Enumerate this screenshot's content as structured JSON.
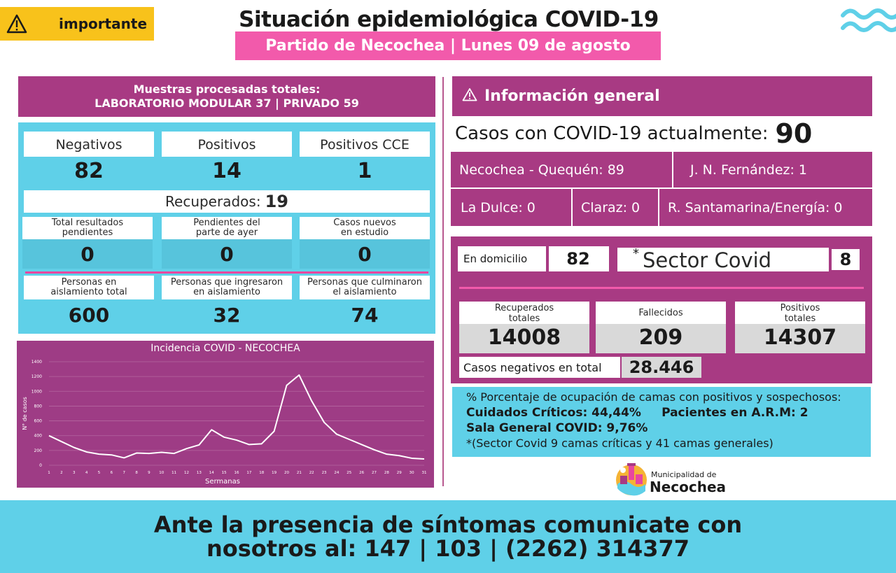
{
  "header": {
    "badge": "importante",
    "title": "Situación epidemiológica COVID-19",
    "subtitle": "Partido de Necochea | Lunes 09 de agosto"
  },
  "muestras": {
    "line1": "Muestras procesadas totales:",
    "line2": "LABORATORIO MODULAR 37 | PRIVADO 59"
  },
  "stats_top": [
    {
      "label": "Negativos",
      "value": "82"
    },
    {
      "label": "Positivos",
      "value": "14"
    },
    {
      "label": "Positivos CCE",
      "value": "1"
    }
  ],
  "recuperados": {
    "label": "Recuperados:",
    "value": "19"
  },
  "pendientes": [
    {
      "label1": "Total resultados",
      "label2": "pendientes",
      "value": "0"
    },
    {
      "label1": "Pendientes del",
      "label2": "parte de ayer",
      "value": "0"
    },
    {
      "label1": "Casos nuevos",
      "label2": "en estudio",
      "value": "0"
    }
  ],
  "aislamiento": [
    {
      "label1": "Personas en",
      "label2": "aislamiento total",
      "value": "600"
    },
    {
      "label1": "Personas que ingresaron",
      "label2": "en aislamiento",
      "value": "32"
    },
    {
      "label1": "Personas que culminaron",
      "label2": "el aislamiento",
      "value": "74"
    }
  ],
  "info": {
    "heading": "Información general",
    "casos_label": "Casos con COVID-19 actualmente:",
    "casos_value": "90",
    "locations": [
      "Necochea - Quequén: 89",
      "J. N. Fernández: 1",
      "La Dulce: 0",
      "Claraz: 0",
      "R. Santamarina/Energía: 0"
    ]
  },
  "domicilio": {
    "label": "En domicilio",
    "value": "82"
  },
  "sector": {
    "star": "*",
    "label": "Sector Covid",
    "value": "8"
  },
  "totales": [
    {
      "label1": "Recuperados",
      "label2": "totales",
      "value": "14008"
    },
    {
      "label1": "Fallecidos",
      "label2": "",
      "value": "209"
    },
    {
      "label1": "Positivos",
      "label2": "totales",
      "value": "14307"
    }
  ],
  "negativos_total": {
    "label": "Casos negativos en total",
    "value": "28.446"
  },
  "camas": {
    "line1": "% Porcentaje de ocupación de camas con positivos y sospechosos:",
    "criticos": "Cuidados Críticos: 44,44%",
    "arm": "Pacientes en A.R.M: 2",
    "sala": "Sala General COVID: 9,76%",
    "note": "*(Sector Covid 9 camas críticas y  41 camas generales)"
  },
  "logo": {
    "line1": "Municipalidad de",
    "line2": "Necochea"
  },
  "footer": {
    "line1": "Ante la presencia de síntomas comunicate con",
    "line2": "nosotros al: 147 | 103 | (2262) 314377"
  },
  "chart_data": {
    "type": "line",
    "title": "Incidencia COVID - NECOCHEA",
    "xlabel": "Sermanas",
    "ylabel": "N° de casos",
    "ylim": [
      0,
      1400
    ],
    "yticks": [
      0,
      200,
      400,
      600,
      800,
      1000,
      1200,
      1400
    ],
    "x": [
      1,
      2,
      3,
      4,
      5,
      6,
      7,
      8,
      9,
      10,
      11,
      12,
      13,
      14,
      15,
      16,
      17,
      18,
      19,
      20,
      21,
      22,
      23,
      24,
      25,
      26,
      27,
      28,
      29,
      30,
      31
    ],
    "xtick_labels": [
      "1",
      "2",
      "3",
      "4",
      "5",
      "6",
      "7",
      "8",
      "9",
      "10",
      "11",
      "12",
      "13",
      "14",
      "15",
      "16",
      "17",
      "18",
      "19",
      "20",
      "21",
      "22",
      "23",
      "24",
      "25",
      "26",
      "27",
      "28",
      "29",
      "30",
      "31"
    ],
    "series": [
      {
        "values": [
          400,
          320,
          240,
          180,
          150,
          140,
          100,
          165,
          160,
          175,
          160,
          225,
          275,
          480,
          380,
          340,
          280,
          290,
          460,
          1080,
          1220,
          870,
          580,
          420,
          350,
          280,
          210,
          150,
          130,
          95,
          85
        ]
      }
    ],
    "grid": true,
    "colors": {
      "background": "#9e3c85",
      "line": "#ffffff",
      "grid": "#b566a0"
    }
  }
}
